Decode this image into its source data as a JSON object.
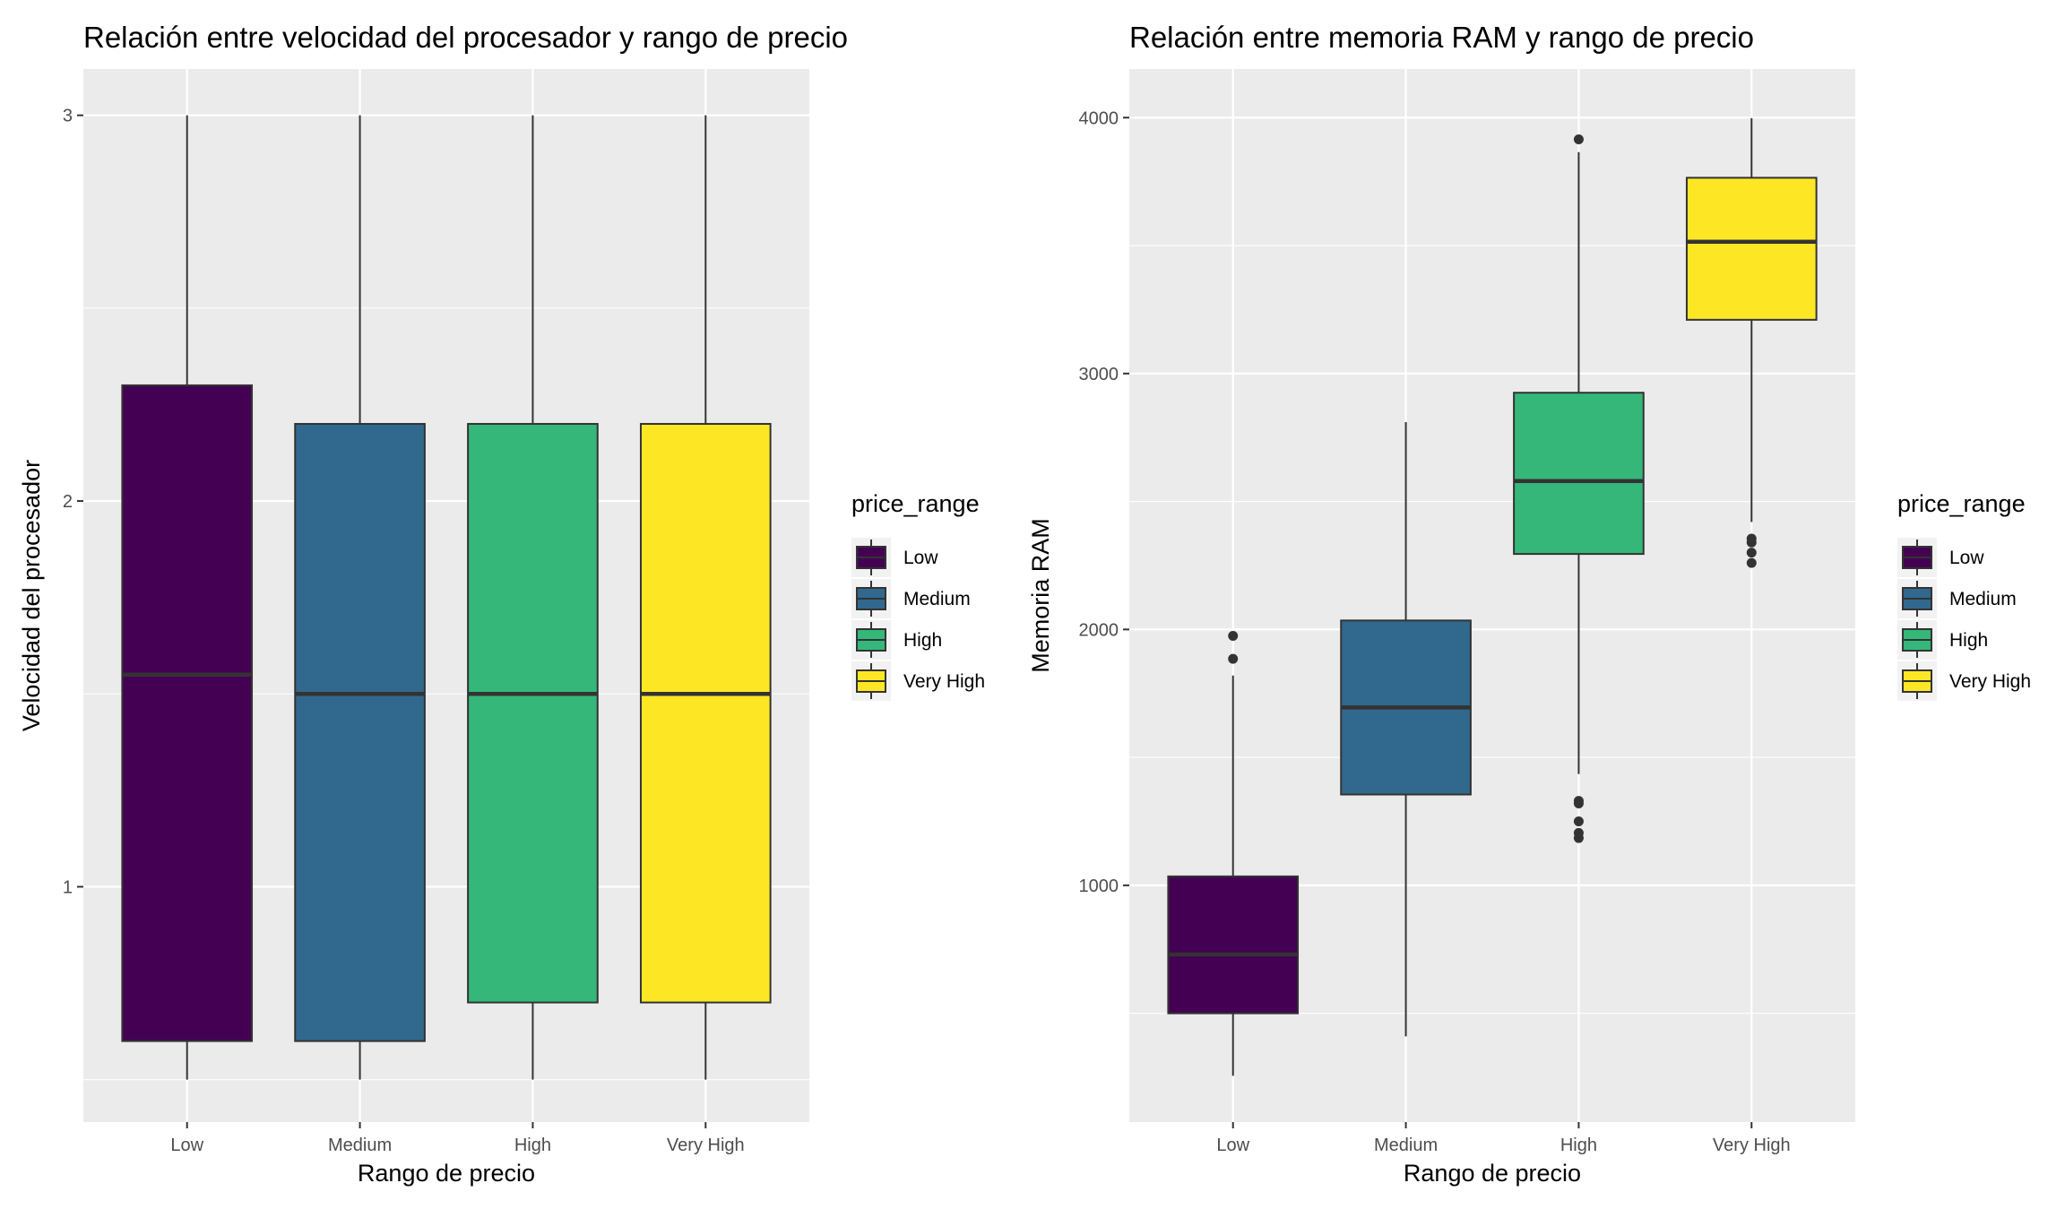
{
  "legend_title": "price_range",
  "legend_entries": [
    "Low",
    "Medium",
    "High",
    "Very High"
  ],
  "colors": {
    "panel_bg": "#EBEBEB",
    "grid": "#FFFFFF",
    "box_outline": "#333333",
    "fills": [
      "#440154",
      "#31688E",
      "#35B779",
      "#FDE725"
    ]
  },
  "chart_data": [
    {
      "type": "boxplot",
      "title": "Relación entre velocidad del procesador y rango de precio",
      "xlabel": "Rango de precio",
      "ylabel": "Velocidad del procesador",
      "categories": [
        "Low",
        "Medium",
        "High",
        "Very High"
      ],
      "yticks": [
        1,
        2,
        3
      ],
      "ylim": [
        0.39,
        3.12
      ],
      "minor_grid": true,
      "legend": "right",
      "boxes": [
        {
          "category": "Low",
          "whisker_low": 0.5,
          "q1": 0.6,
          "median": 1.55,
          "q3": 2.3,
          "whisker_high": 3.0,
          "outliers": []
        },
        {
          "category": "Medium",
          "whisker_low": 0.5,
          "q1": 0.6,
          "median": 1.5,
          "q3": 2.2,
          "whisker_high": 3.0,
          "outliers": []
        },
        {
          "category": "High",
          "whisker_low": 0.5,
          "q1": 0.7,
          "median": 1.5,
          "q3": 2.2,
          "whisker_high": 3.0,
          "outliers": []
        },
        {
          "category": "Very High",
          "whisker_low": 0.5,
          "q1": 0.7,
          "median": 1.5,
          "q3": 2.2,
          "whisker_high": 3.0,
          "outliers": []
        }
      ]
    },
    {
      "type": "boxplot",
      "title": "Relación entre memoria RAM y rango de precio",
      "xlabel": "Rango de precio",
      "ylabel": "Memoria RAM",
      "categories": [
        "Low",
        "Medium",
        "High",
        "Very High"
      ],
      "yticks": [
        1000,
        2000,
        3000,
        4000
      ],
      "ylim": [
        75,
        4190
      ],
      "minor_grid": true,
      "legend": "right",
      "boxes": [
        {
          "category": "Low",
          "whisker_low": 256,
          "q1": 500,
          "median": 730,
          "q3": 1035,
          "whisker_high": 1820,
          "outliers": [
            1885,
            1975
          ]
        },
        {
          "category": "Medium",
          "whisker_low": 410,
          "q1": 1355,
          "median": 1695,
          "q3": 2035,
          "whisker_high": 2810,
          "outliers": []
        },
        {
          "category": "High",
          "whisker_low": 1435,
          "q1": 2295,
          "median": 2580,
          "q3": 2925,
          "whisker_high": 3865,
          "outliers": [
            1185,
            1205,
            1250,
            1320,
            1330,
            3915
          ]
        },
        {
          "category": "Very High",
          "whisker_low": 2420,
          "q1": 3210,
          "median": 3515,
          "q3": 3765,
          "whisker_high": 3998,
          "outliers": [
            2260,
            2300,
            2340,
            2355
          ]
        }
      ]
    }
  ]
}
